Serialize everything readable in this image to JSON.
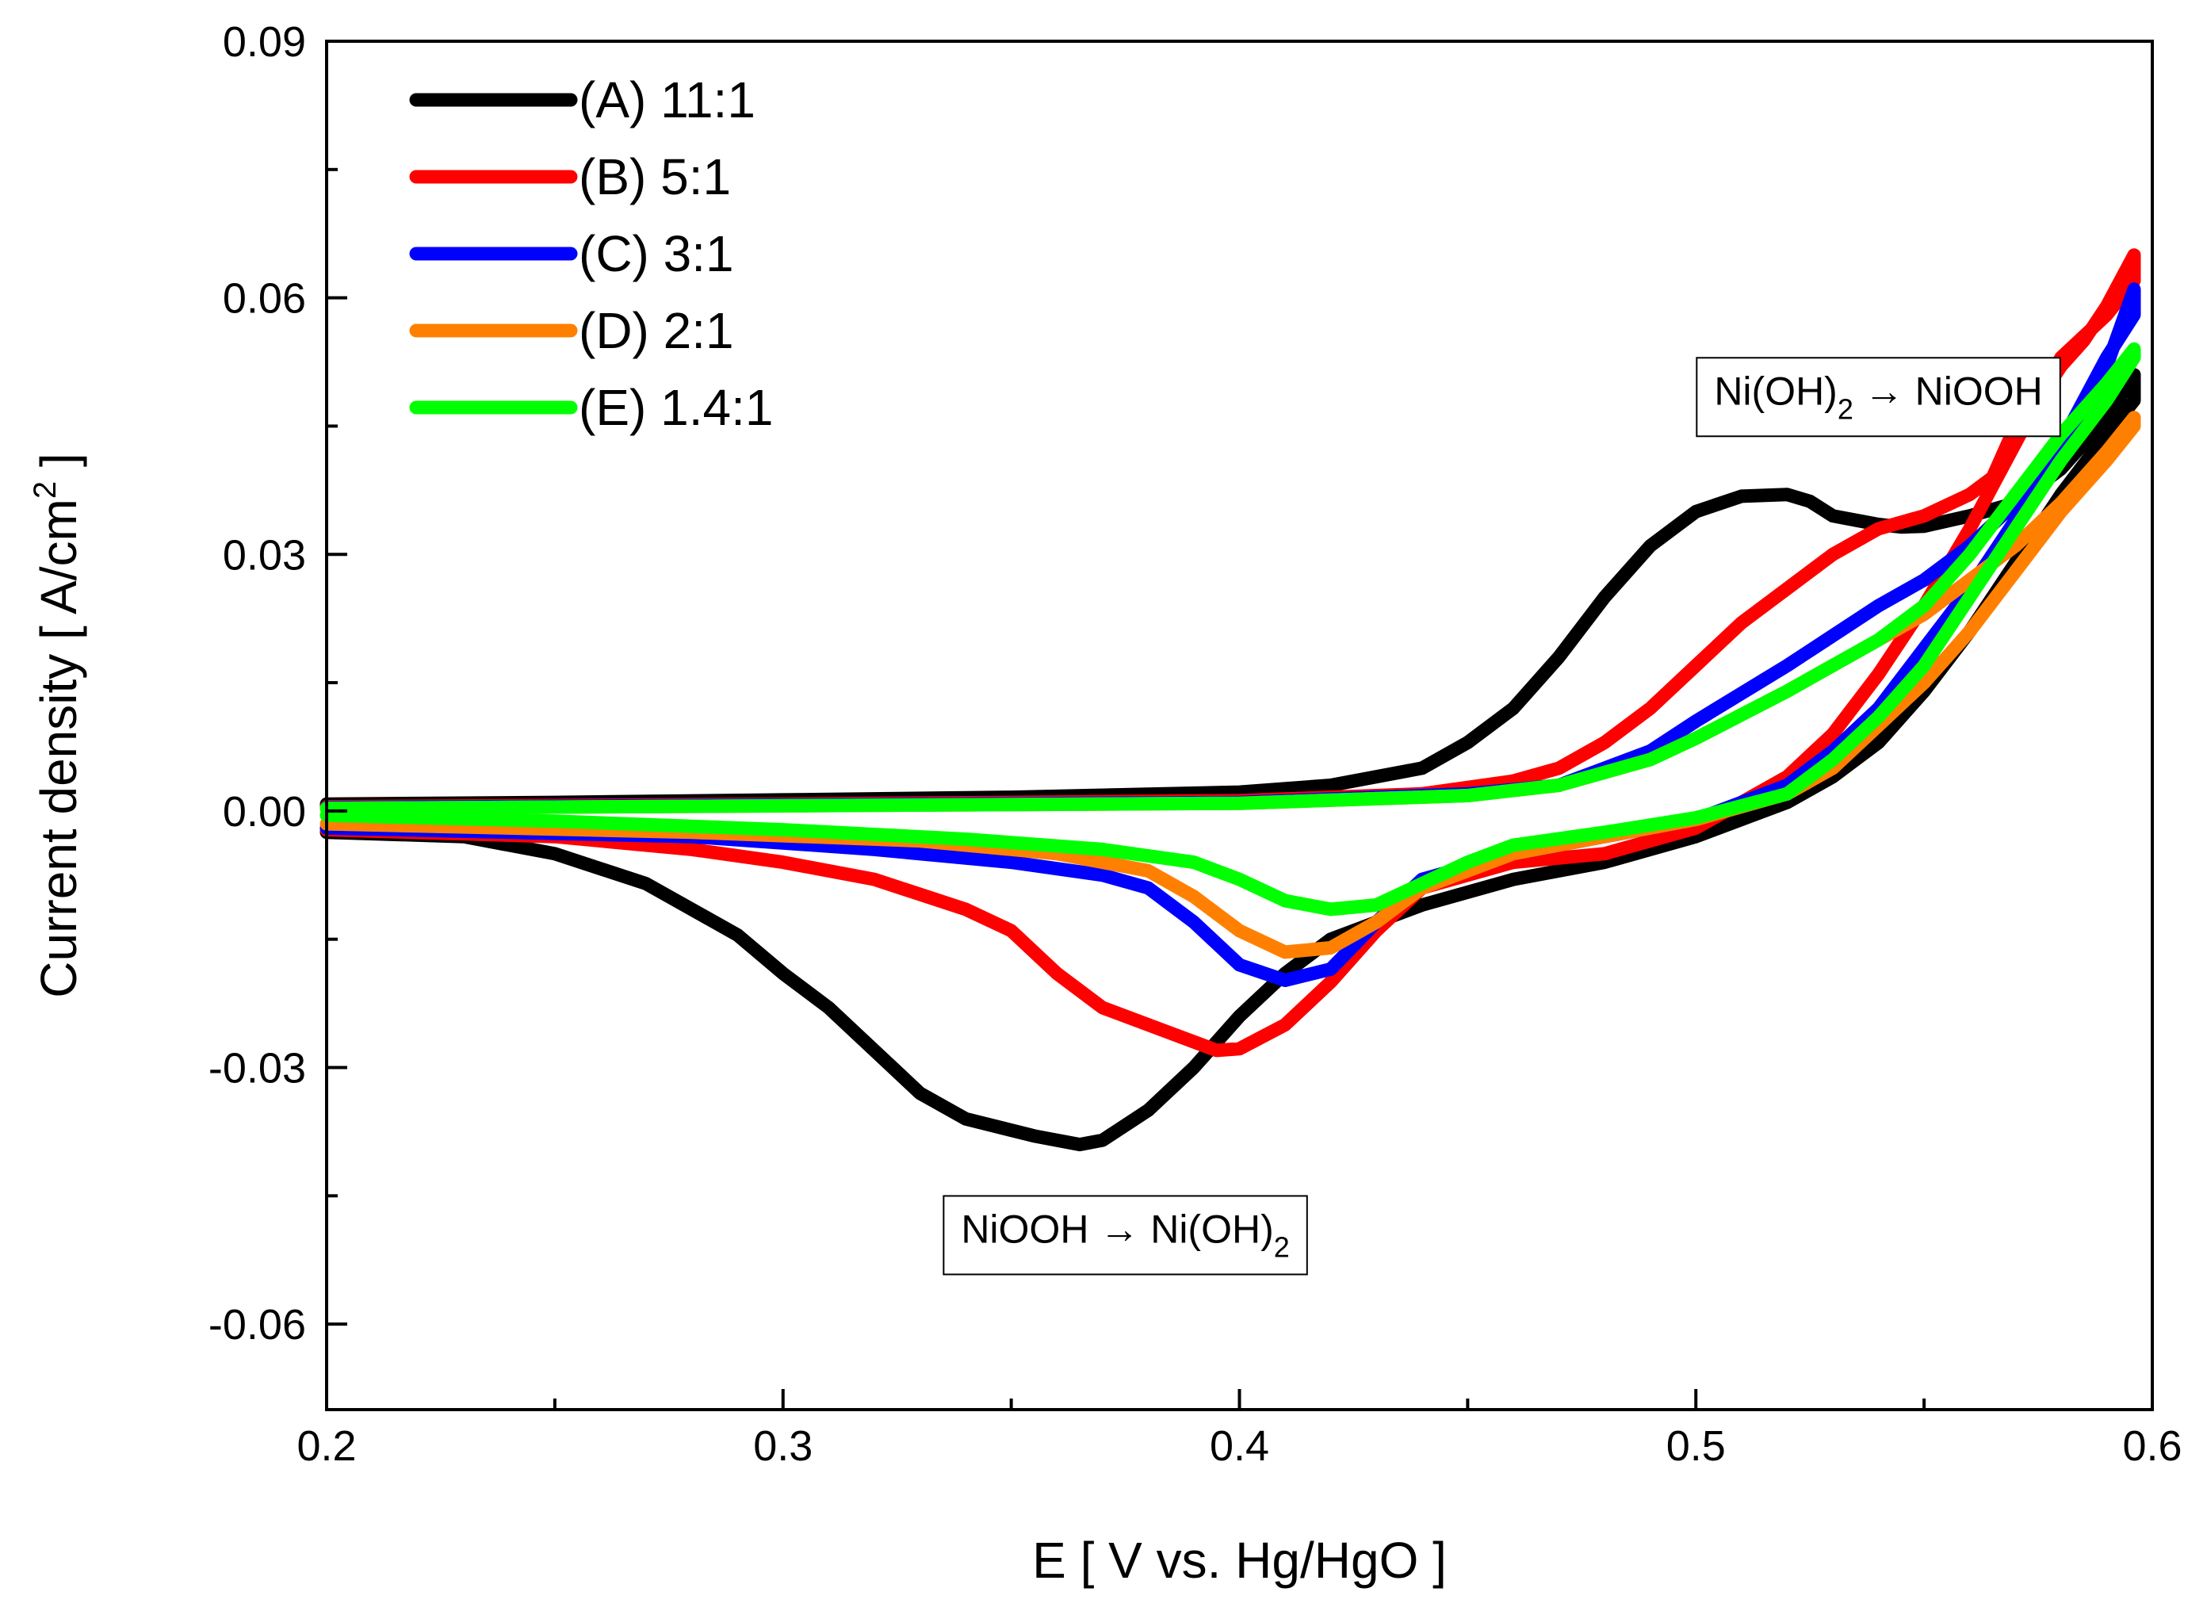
{
  "chart_data": {
    "type": "line",
    "title": "",
    "xlabel": "E [ V vs. Hg/HgO ]",
    "ylabel": "Current density [ A/cm",
    "ylabel_sup": "2",
    "ylabel_end": " ]",
    "xlim": [
      0.2,
      0.6
    ],
    "ylim": [
      -0.07,
      0.09
    ],
    "xticks": [
      {
        "value": 0.2,
        "label": "0.2"
      },
      {
        "value": 0.3,
        "label": "0.3"
      },
      {
        "value": 0.4,
        "label": "0.4"
      },
      {
        "value": 0.5,
        "label": "0.5"
      },
      {
        "value": 0.6,
        "label": "0.6"
      }
    ],
    "xminor": [
      0.25,
      0.35,
      0.45,
      0.55
    ],
    "yticks": [
      {
        "value": -0.06,
        "label": "-0.06"
      },
      {
        "value": -0.03,
        "label": "-0.03"
      },
      {
        "value": 0.0,
        "label": "0.00"
      },
      {
        "value": 0.03,
        "label": "0.03"
      },
      {
        "value": 0.06,
        "label": "0.06"
      },
      {
        "value": 0.09,
        "label": "0.09"
      }
    ],
    "yminor": [
      -0.045,
      -0.015,
      0.015,
      0.045,
      0.075
    ],
    "grid": false,
    "legend_position": "top-left",
    "series": [
      {
        "name": "(A) 11:1",
        "color": "#000000",
        "forward": [
          [
            0.2,
            0.0008
          ],
          [
            0.25,
            0.001
          ],
          [
            0.3,
            0.0013
          ],
          [
            0.35,
            0.0016
          ],
          [
            0.4,
            0.0022
          ],
          [
            0.42,
            0.003
          ],
          [
            0.44,
            0.005
          ],
          [
            0.45,
            0.008
          ],
          [
            0.46,
            0.012
          ],
          [
            0.47,
            0.018
          ],
          [
            0.48,
            0.025
          ],
          [
            0.49,
            0.031
          ],
          [
            0.5,
            0.035
          ],
          [
            0.51,
            0.0368
          ],
          [
            0.52,
            0.037
          ],
          [
            0.525,
            0.0362
          ],
          [
            0.53,
            0.0345
          ],
          [
            0.535,
            0.034
          ],
          [
            0.54,
            0.0335
          ],
          [
            0.545,
            0.0332
          ],
          [
            0.55,
            0.0333
          ],
          [
            0.56,
            0.0345
          ],
          [
            0.57,
            0.036
          ],
          [
            0.58,
            0.04
          ],
          [
            0.59,
            0.046
          ],
          [
            0.596,
            0.051
          ]
        ],
        "reverse": [
          [
            0.596,
            0.048
          ],
          [
            0.59,
            0.044
          ],
          [
            0.58,
            0.037
          ],
          [
            0.57,
            0.029
          ],
          [
            0.56,
            0.021
          ],
          [
            0.55,
            0.014
          ],
          [
            0.54,
            0.008
          ],
          [
            0.53,
            0.004
          ],
          [
            0.52,
            0.001
          ],
          [
            0.5,
            -0.003
          ],
          [
            0.48,
            -0.006
          ],
          [
            0.46,
            -0.008
          ],
          [
            0.44,
            -0.011
          ],
          [
            0.43,
            -0.013
          ],
          [
            0.42,
            -0.015
          ],
          [
            0.41,
            -0.019
          ],
          [
            0.4,
            -0.024
          ],
          [
            0.39,
            -0.03
          ],
          [
            0.38,
            -0.035
          ],
          [
            0.37,
            -0.0385
          ],
          [
            0.365,
            -0.039
          ],
          [
            0.355,
            -0.038
          ],
          [
            0.34,
            -0.036
          ],
          [
            0.33,
            -0.033
          ],
          [
            0.32,
            -0.028
          ],
          [
            0.31,
            -0.023
          ],
          [
            0.3,
            -0.019
          ],
          [
            0.29,
            -0.0145
          ],
          [
            0.27,
            -0.0085
          ],
          [
            0.25,
            -0.005
          ],
          [
            0.23,
            -0.003
          ],
          [
            0.2,
            -0.0025
          ]
        ]
      },
      {
        "name": "(B) 5:1",
        "color": "#ff0000",
        "forward": [
          [
            0.2,
            0.0005
          ],
          [
            0.3,
            0.0008
          ],
          [
            0.4,
            0.0012
          ],
          [
            0.44,
            0.002
          ],
          [
            0.46,
            0.0035
          ],
          [
            0.47,
            0.005
          ],
          [
            0.48,
            0.008
          ],
          [
            0.49,
            0.012
          ],
          [
            0.5,
            0.017
          ],
          [
            0.51,
            0.022
          ],
          [
            0.52,
            0.026
          ],
          [
            0.53,
            0.03
          ],
          [
            0.54,
            0.033
          ],
          [
            0.55,
            0.0345
          ],
          [
            0.56,
            0.037
          ],
          [
            0.565,
            0.039
          ],
          [
            0.57,
            0.045
          ],
          [
            0.575,
            0.048
          ],
          [
            0.58,
            0.052
          ],
          [
            0.585,
            0.055
          ],
          [
            0.59,
            0.059
          ],
          [
            0.596,
            0.065
          ]
        ],
        "reverse": [
          [
            0.596,
            0.062
          ],
          [
            0.59,
            0.058
          ],
          [
            0.58,
            0.053
          ],
          [
            0.57,
            0.043
          ],
          [
            0.56,
            0.033
          ],
          [
            0.55,
            0.024
          ],
          [
            0.54,
            0.016
          ],
          [
            0.53,
            0.009
          ],
          [
            0.52,
            0.004
          ],
          [
            0.5,
            -0.002
          ],
          [
            0.48,
            -0.005
          ],
          [
            0.46,
            -0.006
          ],
          [
            0.44,
            -0.009
          ],
          [
            0.43,
            -0.014
          ],
          [
            0.42,
            -0.02
          ],
          [
            0.41,
            -0.025
          ],
          [
            0.4,
            -0.0278
          ],
          [
            0.395,
            -0.028
          ],
          [
            0.385,
            -0.026
          ],
          [
            0.37,
            -0.023
          ],
          [
            0.36,
            -0.019
          ],
          [
            0.35,
            -0.014
          ],
          [
            0.34,
            -0.0115
          ],
          [
            0.32,
            -0.008
          ],
          [
            0.3,
            -0.006
          ],
          [
            0.28,
            -0.0045
          ],
          [
            0.25,
            -0.003
          ],
          [
            0.2,
            -0.0022
          ]
        ]
      },
      {
        "name": "(C) 3:1",
        "color": "#0000ff",
        "forward": [
          [
            0.2,
            0.0004
          ],
          [
            0.3,
            0.0007
          ],
          [
            0.4,
            0.001
          ],
          [
            0.45,
            0.002
          ],
          [
            0.47,
            0.003
          ],
          [
            0.48,
            0.005
          ],
          [
            0.49,
            0.007
          ],
          [
            0.5,
            0.0105
          ],
          [
            0.52,
            0.017
          ],
          [
            0.54,
            0.024
          ],
          [
            0.55,
            0.027
          ],
          [
            0.56,
            0.031
          ],
          [
            0.57,
            0.036
          ],
          [
            0.58,
            0.042
          ],
          [
            0.59,
            0.052
          ],
          [
            0.596,
            0.061
          ]
        ],
        "reverse": [
          [
            0.596,
            0.058
          ],
          [
            0.59,
            0.053
          ],
          [
            0.58,
            0.043
          ],
          [
            0.57,
            0.034
          ],
          [
            0.56,
            0.026
          ],
          [
            0.55,
            0.019
          ],
          [
            0.54,
            0.012
          ],
          [
            0.53,
            0.007
          ],
          [
            0.52,
            0.003
          ],
          [
            0.5,
            -0.001
          ],
          [
            0.48,
            -0.003
          ],
          [
            0.46,
            -0.005
          ],
          [
            0.44,
            -0.008
          ],
          [
            0.43,
            -0.013
          ],
          [
            0.42,
            -0.0185
          ],
          [
            0.41,
            -0.0198
          ],
          [
            0.4,
            -0.018
          ],
          [
            0.39,
            -0.013
          ],
          [
            0.38,
            -0.009
          ],
          [
            0.37,
            -0.0075
          ],
          [
            0.35,
            -0.006
          ],
          [
            0.32,
            -0.0045
          ],
          [
            0.28,
            -0.003
          ],
          [
            0.2,
            -0.002
          ]
        ]
      },
      {
        "name": "(D) 2:1",
        "color": "#ff8000",
        "forward": [
          [
            0.2,
            0.0003
          ],
          [
            0.3,
            0.0006
          ],
          [
            0.4,
            0.0009
          ],
          [
            0.45,
            0.0018
          ],
          [
            0.47,
            0.003
          ],
          [
            0.48,
            0.0045
          ],
          [
            0.49,
            0.006
          ],
          [
            0.5,
            0.0085
          ],
          [
            0.52,
            0.014
          ],
          [
            0.54,
            0.02
          ],
          [
            0.55,
            0.023
          ],
          [
            0.56,
            0.027
          ],
          [
            0.57,
            0.031
          ],
          [
            0.58,
            0.036
          ],
          [
            0.59,
            0.042
          ],
          [
            0.596,
            0.046
          ]
        ],
        "reverse": [
          [
            0.596,
            0.045
          ],
          [
            0.59,
            0.041
          ],
          [
            0.58,
            0.035
          ],
          [
            0.57,
            0.028
          ],
          [
            0.56,
            0.021
          ],
          [
            0.55,
            0.015
          ],
          [
            0.54,
            0.01
          ],
          [
            0.53,
            0.005
          ],
          [
            0.52,
            0.002
          ],
          [
            0.5,
            -0.001
          ],
          [
            0.48,
            -0.003
          ],
          [
            0.46,
            -0.005
          ],
          [
            0.44,
            -0.009
          ],
          [
            0.43,
            -0.013
          ],
          [
            0.42,
            -0.016
          ],
          [
            0.41,
            -0.0165
          ],
          [
            0.4,
            -0.014
          ],
          [
            0.39,
            -0.01
          ],
          [
            0.38,
            -0.007
          ],
          [
            0.36,
            -0.005
          ],
          [
            0.33,
            -0.0035
          ],
          [
            0.28,
            -0.0025
          ],
          [
            0.2,
            -0.0015
          ]
        ]
      },
      {
        "name": "(E) 1.4:1",
        "color": "#00ff00",
        "forward": [
          [
            0.2,
            0.0003
          ],
          [
            0.3,
            0.0006
          ],
          [
            0.4,
            0.0009
          ],
          [
            0.45,
            0.0018
          ],
          [
            0.47,
            0.003
          ],
          [
            0.48,
            0.0045
          ],
          [
            0.49,
            0.006
          ],
          [
            0.5,
            0.0085
          ],
          [
            0.52,
            0.014
          ],
          [
            0.54,
            0.02
          ],
          [
            0.55,
            0.024
          ],
          [
            0.56,
            0.03
          ],
          [
            0.57,
            0.037
          ],
          [
            0.58,
            0.044
          ],
          [
            0.59,
            0.05
          ],
          [
            0.596,
            0.054
          ]
        ],
        "reverse": [
          [
            0.596,
            0.053
          ],
          [
            0.59,
            0.048
          ],
          [
            0.58,
            0.041
          ],
          [
            0.57,
            0.033
          ],
          [
            0.56,
            0.025
          ],
          [
            0.55,
            0.017
          ],
          [
            0.54,
            0.011
          ],
          [
            0.53,
            0.006
          ],
          [
            0.52,
            0.002
          ],
          [
            0.5,
            -0.0008
          ],
          [
            0.48,
            -0.0025
          ],
          [
            0.46,
            -0.004
          ],
          [
            0.45,
            -0.006
          ],
          [
            0.44,
            -0.0085
          ],
          [
            0.43,
            -0.011
          ],
          [
            0.42,
            -0.0115
          ],
          [
            0.41,
            -0.0105
          ],
          [
            0.4,
            -0.008
          ],
          [
            0.39,
            -0.006
          ],
          [
            0.37,
            -0.0045
          ],
          [
            0.34,
            -0.0033
          ],
          [
            0.3,
            -0.0022
          ],
          [
            0.25,
            -0.0012
          ],
          [
            0.2,
            -0.0005
          ]
        ]
      }
    ],
    "annotations": [
      {
        "main": "Ni(OH)",
        "sub": "2",
        "tail": " → NiOOH",
        "x": 0.54,
        "y": 0.049
      },
      {
        "main": "NiOOH → Ni(OH)",
        "sub": "2",
        "tail": "",
        "x": 0.375,
        "y": -0.049
      }
    ]
  }
}
